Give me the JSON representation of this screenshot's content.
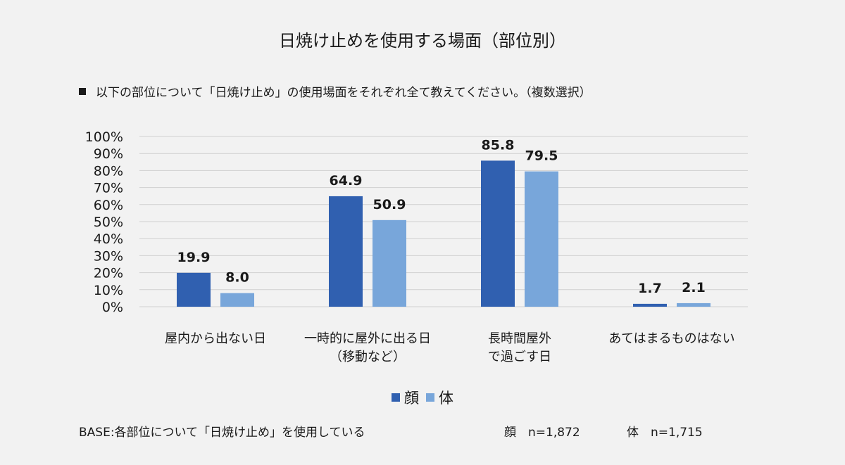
{
  "title": "日焼け止めを使用する場面（部位別）",
  "question": "以下の部位について「日焼け止め」の使用場面をそれぞれ全て教えてください。（複数選択）",
  "base_note": "BASE:各部位について「日焼け止め」を使用している",
  "n_face": "顔　n=1,872",
  "n_body": "体　n=1,715",
  "colors": {
    "face": "#3060b0",
    "body": "#78a6da",
    "grid": "#d0d0d0"
  },
  "chart_data": {
    "type": "bar",
    "title": "日焼け止めを使用する場面（部位別）",
    "categories": [
      [
        "屋内から出ない日"
      ],
      [
        "一時的に屋外に出る日",
        "（移動など）"
      ],
      [
        "長時間屋外",
        "で過ごす日"
      ],
      [
        "あてはまるものはない"
      ]
    ],
    "series": [
      {
        "name": "顔",
        "values": [
          19.9,
          64.9,
          85.8,
          1.7
        ]
      },
      {
        "name": "体",
        "values": [
          8.0,
          50.9,
          79.5,
          2.1
        ]
      }
    ],
    "value_labels": [
      [
        "19.9",
        "64.9",
        "85.8",
        "1.7"
      ],
      [
        "8.0",
        "50.9",
        "79.5",
        "2.1"
      ]
    ],
    "ylim": [
      0,
      100
    ],
    "yticks": [
      "0%",
      "10%",
      "20%",
      "30%",
      "40%",
      "50%",
      "60%",
      "70%",
      "80%",
      "90%",
      "100%"
    ],
    "legend_position": "bottom"
  }
}
